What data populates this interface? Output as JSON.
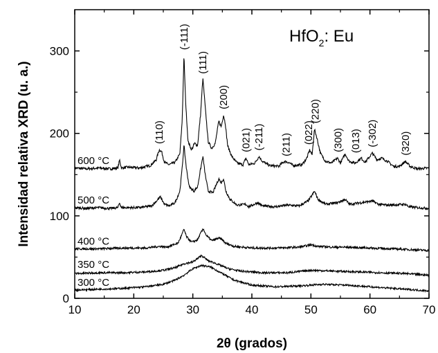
{
  "chart_data": {
    "type": "line",
    "title": "HfO",
    "title_subscript": "2",
    "title_suffix": ": Eu",
    "xlabel": "2θ (grados)",
    "ylabel": "Intensidad relativa XRD  (u. a.)",
    "xlim": [
      10,
      70
    ],
    "ylim": [
      0,
      350
    ],
    "x_ticks": [
      10,
      20,
      30,
      40,
      50,
      60,
      70
    ],
    "y_ticks": [
      0,
      100,
      200,
      300
    ],
    "legend": "none",
    "series": [
      {
        "name": "600 °C",
        "baseline": 158,
        "noise": 1.6,
        "points": [
          [
            10,
            158
          ],
          [
            12,
            157
          ],
          [
            14,
            158
          ],
          [
            16,
            157
          ],
          [
            17.3,
            158
          ],
          [
            17.6,
            168
          ],
          [
            17.9,
            158
          ],
          [
            19,
            159
          ],
          [
            21,
            158
          ],
          [
            22.8,
            161
          ],
          [
            23.8,
            168
          ],
          [
            24.3,
            180
          ],
          [
            24.7,
            178
          ],
          [
            25.2,
            165
          ],
          [
            26,
            162
          ],
          [
            27,
            165
          ],
          [
            27.8,
            175
          ],
          [
            28.2,
            215
          ],
          [
            28.5,
            295
          ],
          [
            28.8,
            235
          ],
          [
            29.2,
            190
          ],
          [
            29.8,
            180
          ],
          [
            30.3,
            188
          ],
          [
            30.8,
            185
          ],
          [
            31.3,
            222
          ],
          [
            31.7,
            267
          ],
          [
            32.1,
            232
          ],
          [
            32.6,
            190
          ],
          [
            33.2,
            182
          ],
          [
            33.8,
            188
          ],
          [
            34.4,
            215
          ],
          [
            34.8,
            208
          ],
          [
            35.2,
            222
          ],
          [
            35.5,
            212
          ],
          [
            35.9,
            185
          ],
          [
            36.6,
            172
          ],
          [
            37.5,
            164
          ],
          [
            38.5,
            162
          ],
          [
            39,
            170
          ],
          [
            39.5,
            162
          ],
          [
            40.5,
            164
          ],
          [
            41.2,
            172
          ],
          [
            41.8,
            166
          ],
          [
            43,
            161
          ],
          [
            44.5,
            160
          ],
          [
            45.5,
            166
          ],
          [
            46.2,
            165
          ],
          [
            47,
            161
          ],
          [
            48.5,
            162
          ],
          [
            49.3,
            170
          ],
          [
            49.8,
            180
          ],
          [
            50.2,
            174
          ],
          [
            50.6,
            205
          ],
          [
            51,
            195
          ],
          [
            51.6,
            176
          ],
          [
            52.5,
            166
          ],
          [
            53.5,
            164
          ],
          [
            54.5,
            170
          ],
          [
            55,
            164
          ],
          [
            55.8,
            175
          ],
          [
            56.5,
            166
          ],
          [
            57.5,
            164
          ],
          [
            58.5,
            170
          ],
          [
            59.2,
            165
          ],
          [
            60.4,
            176
          ],
          [
            61.2,
            168
          ],
          [
            62,
            170
          ],
          [
            63,
            166
          ],
          [
            64,
            160
          ],
          [
            65,
            160
          ],
          [
            66,
            166
          ],
          [
            66.8,
            160
          ],
          [
            68,
            157
          ],
          [
            70,
            158
          ]
        ]
      },
      {
        "name": "500 °C",
        "baseline": 110,
        "noise": 1.5,
        "points": [
          [
            10,
            110
          ],
          [
            12,
            109
          ],
          [
            14,
            110
          ],
          [
            16,
            109
          ],
          [
            17.3,
            110
          ],
          [
            17.6,
            116
          ],
          [
            17.9,
            110
          ],
          [
            19,
            110
          ],
          [
            21,
            110
          ],
          [
            23,
            112
          ],
          [
            24,
            119
          ],
          [
            24.5,
            123
          ],
          [
            25.2,
            114
          ],
          [
            26,
            112
          ],
          [
            27,
            116
          ],
          [
            27.8,
            130
          ],
          [
            28.2,
            158
          ],
          [
            28.5,
            186
          ],
          [
            28.9,
            158
          ],
          [
            29.4,
            135
          ],
          [
            30.2,
            130
          ],
          [
            30.8,
            135
          ],
          [
            31.3,
            156
          ],
          [
            31.7,
            172
          ],
          [
            32.1,
            150
          ],
          [
            32.6,
            130
          ],
          [
            33.4,
            128
          ],
          [
            34.4,
            145
          ],
          [
            34.8,
            140
          ],
          [
            35.2,
            145
          ],
          [
            35.6,
            130
          ],
          [
            36.3,
            120
          ],
          [
            37.5,
            113
          ],
          [
            39,
            114
          ],
          [
            39.5,
            111
          ],
          [
            41,
            116
          ],
          [
            41.8,
            112
          ],
          [
            44,
            111
          ],
          [
            46,
            113
          ],
          [
            48,
            112
          ],
          [
            49.5,
            118
          ],
          [
            50.2,
            125
          ],
          [
            50.6,
            130
          ],
          [
            51.2,
            120
          ],
          [
            52.5,
            114
          ],
          [
            54.5,
            116
          ],
          [
            55.8,
            120
          ],
          [
            56.5,
            114
          ],
          [
            58.5,
            116
          ],
          [
            60.4,
            118
          ],
          [
            61.5,
            114
          ],
          [
            63,
            113
          ],
          [
            66,
            114
          ],
          [
            66.6,
            111
          ],
          [
            68,
            110
          ],
          [
            70,
            109
          ]
        ]
      },
      {
        "name": "400 °C",
        "baseline": 60,
        "noise": 1.3,
        "points": [
          [
            10,
            60
          ],
          [
            14,
            60
          ],
          [
            18,
            61
          ],
          [
            22,
            61
          ],
          [
            24.5,
            63
          ],
          [
            25.5,
            62
          ],
          [
            27.5,
            67
          ],
          [
            28.2,
            78
          ],
          [
            28.5,
            84
          ],
          [
            28.9,
            75
          ],
          [
            29.8,
            68
          ],
          [
            30.8,
            71
          ],
          [
            31.4,
            80
          ],
          [
            31.8,
            84
          ],
          [
            32.3,
            76
          ],
          [
            33.2,
            70
          ],
          [
            34.4,
            73
          ],
          [
            35,
            71
          ],
          [
            35.5,
            67
          ],
          [
            37,
            63
          ],
          [
            40,
            61
          ],
          [
            44,
            61
          ],
          [
            48,
            62
          ],
          [
            50.2,
            65
          ],
          [
            51,
            63
          ],
          [
            54,
            62
          ],
          [
            56,
            62
          ],
          [
            60,
            61
          ],
          [
            64,
            60
          ],
          [
            70,
            58
          ]
        ]
      },
      {
        "name": "350 °C",
        "baseline": 32,
        "noise": 1.2,
        "points": [
          [
            10,
            30
          ],
          [
            14,
            31
          ],
          [
            18,
            31
          ],
          [
            22,
            32
          ],
          [
            25,
            34
          ],
          [
            27,
            37
          ],
          [
            28.5,
            42
          ],
          [
            30,
            44
          ],
          [
            31.5,
            52
          ],
          [
            32.5,
            46
          ],
          [
            34,
            42
          ],
          [
            36,
            36
          ],
          [
            38,
            33
          ],
          [
            42,
            31
          ],
          [
            46,
            31
          ],
          [
            50,
            34
          ],
          [
            54,
            33
          ],
          [
            58,
            32
          ],
          [
            62,
            31
          ],
          [
            66,
            30
          ],
          [
            70,
            28
          ]
        ]
      },
      {
        "name": "300 °C",
        "baseline": 10,
        "noise": 1.1,
        "points": [
          [
            10,
            10
          ],
          [
            14,
            11
          ],
          [
            18,
            12
          ],
          [
            22,
            14
          ],
          [
            25,
            17
          ],
          [
            27,
            22
          ],
          [
            28.5,
            28
          ],
          [
            30,
            36
          ],
          [
            31.5,
            40
          ],
          [
            33,
            38
          ],
          [
            35,
            30
          ],
          [
            37,
            22
          ],
          [
            40,
            16
          ],
          [
            44,
            14
          ],
          [
            48,
            15
          ],
          [
            52,
            17
          ],
          [
            56,
            16
          ],
          [
            60,
            14
          ],
          [
            64,
            12
          ],
          [
            68,
            10
          ],
          [
            70,
            9
          ]
        ]
      }
    ],
    "peak_labels": [
      "(110)",
      "(-111)",
      "(111)",
      "(200)",
      "(021)",
      "(-211)",
      "(211)",
      "(022)",
      "(220)",
      "(300)",
      "(013)",
      "(-302)",
      "(320)"
    ],
    "peak_label_positions": [
      [
        24.3,
        183
      ],
      [
        28.5,
        297
      ],
      [
        31.7,
        268
      ],
      [
        35.2,
        225
      ],
      [
        39,
        173
      ],
      [
        41.2,
        175
      ],
      [
        45.8,
        168
      ],
      [
        49.6,
        182
      ],
      [
        50.7,
        208
      ],
      [
        54.6,
        173
      ],
      [
        57.6,
        172
      ],
      [
        60.4,
        179
      ],
      [
        66,
        169
      ]
    ]
  }
}
